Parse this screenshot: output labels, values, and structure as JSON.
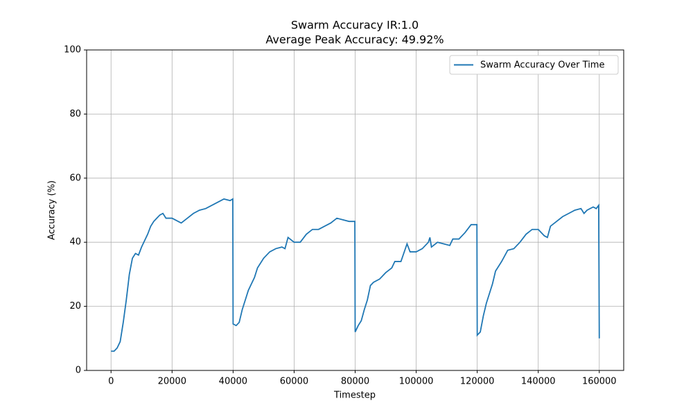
{
  "chart_data": {
    "type": "line",
    "title": "Swarm Accuracy IR:1.0",
    "subtitle": "Average Peak Accuracy: 49.92%",
    "x_label": "Timestep",
    "y_label": "Accuracy (%)",
    "x": [
      0,
      1000,
      2000,
      3000,
      4000,
      5000,
      6000,
      7000,
      8000,
      9000,
      10000,
      11000,
      12000,
      13000,
      14000,
      15000,
      16000,
      17000,
      18000,
      20000,
      22000,
      23000,
      25000,
      27000,
      29000,
      31000,
      33000,
      35000,
      37000,
      39000,
      39900,
      40000,
      41000,
      42000,
      43000,
      44000,
      45000,
      46000,
      47000,
      48000,
      50000,
      52000,
      54000,
      56000,
      57000,
      58000,
      60000,
      62000,
      64000,
      66000,
      68000,
      70000,
      72000,
      74000,
      76000,
      78000,
      79900,
      80000,
      81000,
      82000,
      83000,
      84000,
      85000,
      86000,
      88000,
      90000,
      92000,
      93000,
      95000,
      97000,
      98000,
      100000,
      102000,
      104000,
      104500,
      105000,
      107000,
      109000,
      111000,
      112000,
      114000,
      116000,
      118000,
      119900,
      120000,
      121000,
      122000,
      123000,
      124000,
      125000,
      126000,
      128000,
      130000,
      132000,
      134000,
      136000,
      138000,
      140000,
      142000,
      143000,
      144000,
      146000,
      148000,
      150000,
      152000,
      154000,
      155000,
      156000,
      158000,
      159000,
      159800,
      160000
    ],
    "series": [
      {
        "name": "Swarm Accuracy Over Time",
        "color": "#1f77b4",
        "values": [
          6,
          6,
          7,
          9,
          15,
          22,
          30,
          35,
          36.5,
          36,
          38.5,
          40.5,
          42.5,
          45,
          46.5,
          47.5,
          48.5,
          49,
          47.5,
          47.5,
          46.5,
          46,
          47.5,
          49,
          50,
          50.5,
          51.5,
          52.5,
          53.5,
          53,
          53.5,
          14.5,
          14,
          15,
          19,
          22,
          25,
          27,
          29,
          32,
          35,
          37,
          38,
          38.5,
          38,
          41.5,
          40,
          40,
          42.5,
          44,
          44,
          45,
          46,
          47.5,
          47,
          46.5,
          46.5,
          12,
          14,
          15.5,
          19,
          22,
          26.5,
          27.5,
          28.5,
          30.5,
          32,
          34,
          34,
          39.5,
          37,
          37,
          38,
          40,
          41.5,
          38.5,
          40,
          39.5,
          39,
          41,
          41,
          43,
          45.5,
          45.5,
          11,
          12,
          17,
          21,
          24,
          27,
          31,
          34,
          37.5,
          38,
          40,
          42.5,
          44,
          44,
          42,
          41.5,
          45,
          46.5,
          48,
          49,
          50,
          50.5,
          49,
          50,
          51,
          50.5,
          51.5,
          10
        ]
      }
    ],
    "xlim": [
      -8000,
      168000
    ],
    "ylim": [
      0,
      100
    ],
    "xticks": [
      0,
      20000,
      40000,
      60000,
      80000,
      100000,
      120000,
      140000,
      160000
    ],
    "yticks": [
      0,
      20,
      40,
      60,
      80,
      100
    ],
    "grid": true,
    "legend": "upper right"
  }
}
